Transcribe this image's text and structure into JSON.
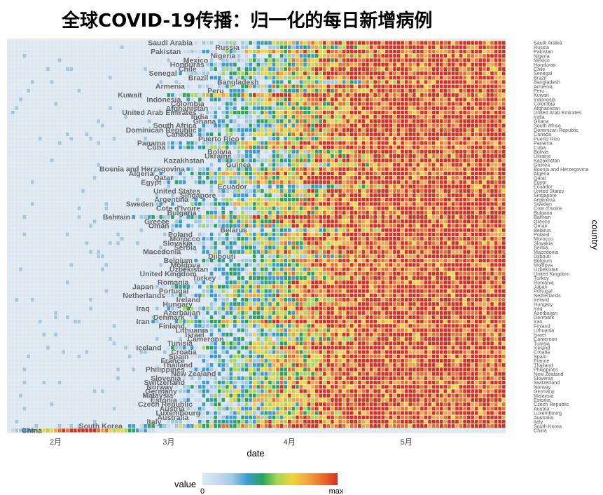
{
  "chart_data": {
    "type": "heatmap",
    "title": "全球COVID-19传播：归一化的每日新增病例",
    "xlabel": "date",
    "ylabel": "country",
    "x_ticks": [
      "2月",
      "3月",
      "4月",
      "5月"
    ],
    "x_range": [
      "2020-01-20",
      "2020-05-26"
    ],
    "legend": {
      "title": "value",
      "min_label": "0",
      "max_label": "max",
      "position": "bottom"
    },
    "colors": [
      "#dbe9f6",
      "#c6dbef",
      "#9ecae1",
      "#3a9bd5",
      "#2ca25f",
      "#a6d854",
      "#f0d43a",
      "#f2a541",
      "#e8702a",
      "#d7301f"
    ],
    "countries": [
      {
        "name": "Saudi Arabia",
        "first": "2020-03-08"
      },
      {
        "name": "Russia",
        "first": "2020-03-20"
      },
      {
        "name": "Pakistan",
        "first": "2020-03-05"
      },
      {
        "name": "Nigeria",
        "first": "2020-03-19"
      },
      {
        "name": "Mexico",
        "first": "2020-03-12"
      },
      {
        "name": "Honduras",
        "first": "2020-03-11"
      },
      {
        "name": "Chile",
        "first": "2020-03-09"
      },
      {
        "name": "Senegal",
        "first": "2020-03-04"
      },
      {
        "name": "Brazil",
        "first": "2020-03-12"
      },
      {
        "name": "Bangladesh",
        "first": "2020-03-25"
      },
      {
        "name": "Armenia",
        "first": "2020-03-06"
      },
      {
        "name": "Peru",
        "first": "2020-03-16"
      },
      {
        "name": "Kuwait",
        "first": "2020-02-24"
      },
      {
        "name": "Indonesia",
        "first": "2020-03-05"
      },
      {
        "name": "Colombia",
        "first": "2020-03-11"
      },
      {
        "name": "Afghanistan",
        "first": "2020-03-12"
      },
      {
        "name": "United Arab Emirates",
        "first": "2020-03-09"
      },
      {
        "name": "India",
        "first": "2020-03-12"
      },
      {
        "name": "Ghana",
        "first": "2020-03-14"
      },
      {
        "name": "South Africa",
        "first": "2020-03-09"
      },
      {
        "name": "Dominican Republic",
        "first": "2020-03-09"
      },
      {
        "name": "Canada",
        "first": "2020-03-08"
      },
      {
        "name": "Puerto Rico",
        "first": "2020-03-20"
      },
      {
        "name": "Panama",
        "first": "2020-03-01"
      },
      {
        "name": "Cuba",
        "first": "2020-03-01"
      },
      {
        "name": "Bolivia",
        "first": "2020-03-18"
      },
      {
        "name": "Ukraine",
        "first": "2020-03-18"
      },
      {
        "name": "Kazakhstan",
        "first": "2020-03-11"
      },
      {
        "name": "Guinea",
        "first": "2020-03-23"
      },
      {
        "name": "Bosnia and Herzegovina",
        "first": "2020-03-06"
      },
      {
        "name": "Algeria",
        "first": "2020-02-27"
      },
      {
        "name": "Qatar",
        "first": "2020-03-03"
      },
      {
        "name": "Egypt",
        "first": "2020-02-29"
      },
      {
        "name": "Ecuador",
        "first": "2020-03-22"
      },
      {
        "name": "United States",
        "first": "2020-03-10"
      },
      {
        "name": "Singapore",
        "first": "2020-03-14"
      },
      {
        "name": "Argentina",
        "first": "2020-03-07"
      },
      {
        "name": "Sweden",
        "first": "2020-02-27"
      },
      {
        "name": "Cote d'Ivoire",
        "first": "2020-03-10"
      },
      {
        "name": "Bulgaria",
        "first": "2020-03-09"
      },
      {
        "name": "Bahrain",
        "first": "2020-02-21"
      },
      {
        "name": "Greece",
        "first": "2020-03-02"
      },
      {
        "name": "Oman",
        "first": "2020-03-02"
      },
      {
        "name": "Belarus",
        "first": "2020-03-22"
      },
      {
        "name": "Poland",
        "first": "2020-03-08"
      },
      {
        "name": "Morocco",
        "first": "2020-03-10"
      },
      {
        "name": "Slovakia",
        "first": "2020-03-08"
      },
      {
        "name": "Serbia",
        "first": "2020-03-09"
      },
      {
        "name": "Macedonia",
        "first": "2020-03-05"
      },
      {
        "name": "Djibouti",
        "first": "2020-03-19"
      },
      {
        "name": "Belgium",
        "first": "2020-03-08"
      },
      {
        "name": "Moldova",
        "first": "2020-03-10"
      },
      {
        "name": "Uzbekistan",
        "first": "2020-03-12"
      },
      {
        "name": "United Kingdom",
        "first": "2020-03-09"
      },
      {
        "name": "Turkey",
        "first": "2020-03-14"
      },
      {
        "name": "Romania",
        "first": "2020-03-07"
      },
      {
        "name": "Japan",
        "first": "2020-02-27"
      },
      {
        "name": "Portugal",
        "first": "2020-03-07"
      },
      {
        "name": "Netherlands",
        "first": "2020-03-01"
      },
      {
        "name": "Ireland",
        "first": "2020-03-10"
      },
      {
        "name": "Hungary",
        "first": "2020-03-08"
      },
      {
        "name": "Iraq",
        "first": "2020-02-26"
      },
      {
        "name": "Azerbaijan",
        "first": "2020-03-10"
      },
      {
        "name": "Denmark",
        "first": "2020-03-06"
      },
      {
        "name": "Iran",
        "first": "2020-02-26"
      },
      {
        "name": "Finland",
        "first": "2020-03-06"
      },
      {
        "name": "Lithuania",
        "first": "2020-03-12"
      },
      {
        "name": "Israel",
        "first": "2020-03-11"
      },
      {
        "name": "Cameroon",
        "first": "2020-03-16"
      },
      {
        "name": "Tunisia",
        "first": "2020-03-08"
      },
      {
        "name": "Iceland",
        "first": "2020-02-29"
      },
      {
        "name": "Croatia",
        "first": "2020-03-09"
      },
      {
        "name": "Spain",
        "first": "2020-03-07"
      },
      {
        "name": "France",
        "first": "2020-03-06"
      },
      {
        "name": "Thailand",
        "first": "2020-03-08"
      },
      {
        "name": "Philippines",
        "first": "2020-03-06"
      },
      {
        "name": "New Zealand",
        "first": "2020-03-14"
      },
      {
        "name": "Slovenia",
        "first": "2020-03-05"
      },
      {
        "name": "Switzerland",
        "first": "2020-03-06"
      },
      {
        "name": "Norway",
        "first": "2020-03-03"
      },
      {
        "name": "Germany",
        "first": "2020-03-04"
      },
      {
        "name": "Malaysia",
        "first": "2020-03-03"
      },
      {
        "name": "Estonia",
        "first": "2020-03-04"
      },
      {
        "name": "Czech Republic",
        "first": "2020-03-08"
      },
      {
        "name": "Austria",
        "first": "2020-03-06"
      },
      {
        "name": "Luxembourg",
        "first": "2020-03-10"
      },
      {
        "name": "Australia",
        "first": "2020-03-07"
      },
      {
        "name": "Italy",
        "first": "2020-02-29"
      },
      {
        "name": "South Korea",
        "first": "2020-02-19"
      },
      {
        "name": "China",
        "first": "2020-01-20"
      }
    ]
  }
}
